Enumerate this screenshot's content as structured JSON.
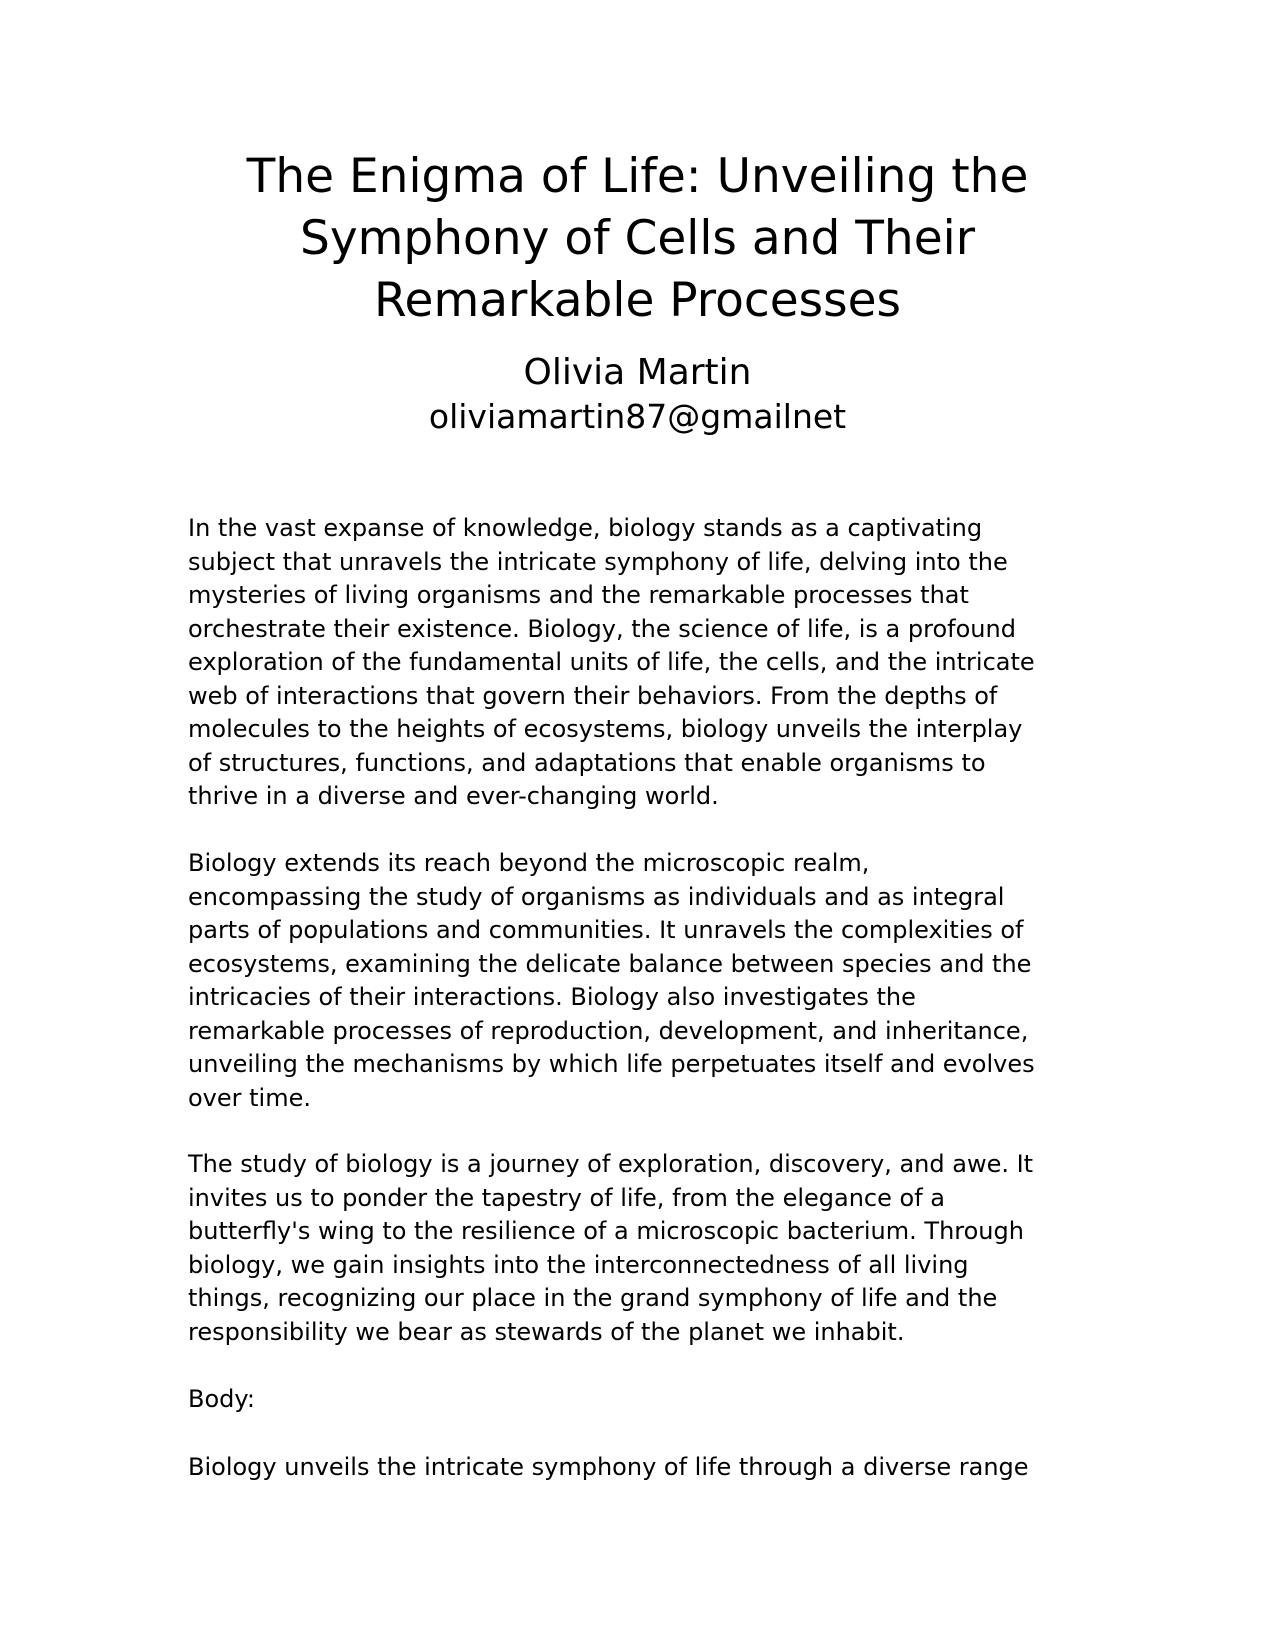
{
  "document": {
    "title": "The Enigma of Life: Unveiling the\nSymphony of Cells and Their\nRemarkable Processes",
    "author": "Olivia Martin",
    "email": "oliviamartin87@gmailnet",
    "paragraphs": [
      "In the vast expanse of knowledge, biology stands as a captivating\nsubject that unravels the intricate symphony of life, delving into the\nmysteries of living organisms and the remarkable processes that\norchestrate their existence. Biology, the science of life, is a profound\nexploration of the fundamental units of life, the cells, and the intricate\nweb of interactions that govern their behaviors. From the depths of\nmolecules to the heights of ecosystems, biology unveils the interplay\nof structures, functions, and adaptations that enable organisms to\nthrive in a diverse and ever-changing world.",
      "Biology extends its reach beyond the microscopic realm,\nencompassing the study of organisms as individuals and as integral\nparts of populations and communities. It unravels the complexities of\necosystems, examining the delicate balance between species and the\nintricacies of their interactions. Biology also investigates the\nremarkable processes of reproduction, development, and inheritance,\nunveiling the mechanisms by which life perpetuates itself and evolves\nover time.",
      "The study of biology is a journey of exploration, discovery, and awe. It\ninvites us to ponder the tapestry of life, from the elegance of a\nbutterfly's wing to the resilience of a microscopic bacterium. Through\nbiology, we gain insights into the interconnectedness of all living\nthings, recognizing our place in the grand symphony of life and the\nresponsibility we bear as stewards of the planet we inhabit.",
      "Body:",
      "Biology unveils the intricate symphony of life through a diverse range"
    ]
  }
}
